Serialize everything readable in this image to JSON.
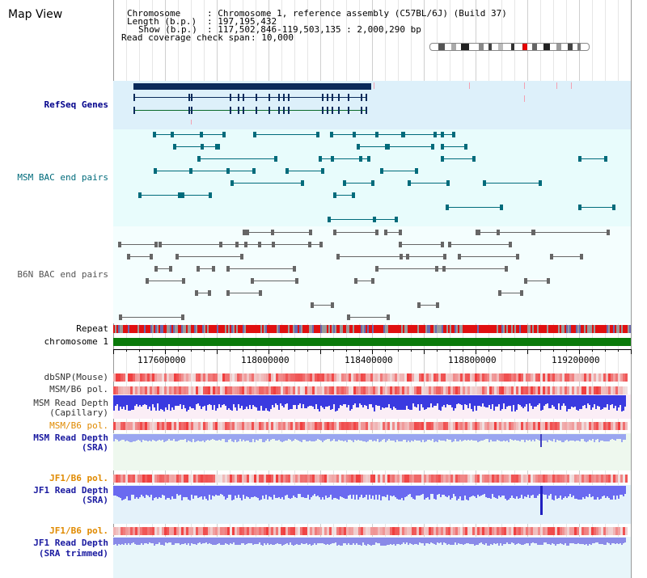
{
  "title": "Map View",
  "info": {
    "chromosome_label": "Chromosome",
    "chromosome_value": ": Chromosome 1, reference assembly (C57BL/6J) (Build 37)",
    "length_label": "Length (b.p.)",
    "length_value": ": 197,195,432",
    "show_label": "Show (b.p.)",
    "show_value": ": 117,502,846-119,503,135 : 2,000,290 bp",
    "coverage_label": "Read coverage check span",
    "coverage_value": ": 10,000"
  },
  "tracks": {
    "refseq": "RefSeq Genes",
    "msm_bac": "MSM BAC end pairs",
    "b6n_bac": "B6N BAC end pairs",
    "repeat": "Repeat",
    "chromosome": "chromosome 1",
    "dbsnp": "dbSNP(Mouse)",
    "msm_b6_pol_1": "MSM/B6 pol.",
    "msm_depth_cap_1": "MSM Read Depth",
    "msm_depth_cap_2": "(Capillary)",
    "msm_b6_pol_2": "MSM/B6 pol.",
    "msm_depth_sra_1": "MSM Read Depth",
    "msm_depth_sra_2": "(SRA)",
    "jf1_b6_pol_1": "JF1/B6 pol.",
    "jf1_depth_sra_1": "JF1 Read Depth",
    "jf1_depth_sra_2": "(SRA)",
    "jf1_b6_pol_2": "JF1/B6 pol.",
    "jf1_depth_trim_1": "JF1 Read Depth",
    "jf1_depth_trim_2": "(SRA trimmed)"
  },
  "axis": {
    "ticks": [
      "117600000",
      "118000000",
      "118400000",
      "118800000",
      "119200000"
    ]
  },
  "colors": {
    "navy": "#00008b",
    "teal": "#006b7b",
    "gray": "#555555",
    "orange": "#e08a00",
    "msm_bg": "#e8fcfc",
    "refseq_bg": "#ddf0fa",
    "depth_bg": "#fbeef6",
    "depth_bg2": "#eef8ee"
  }
}
